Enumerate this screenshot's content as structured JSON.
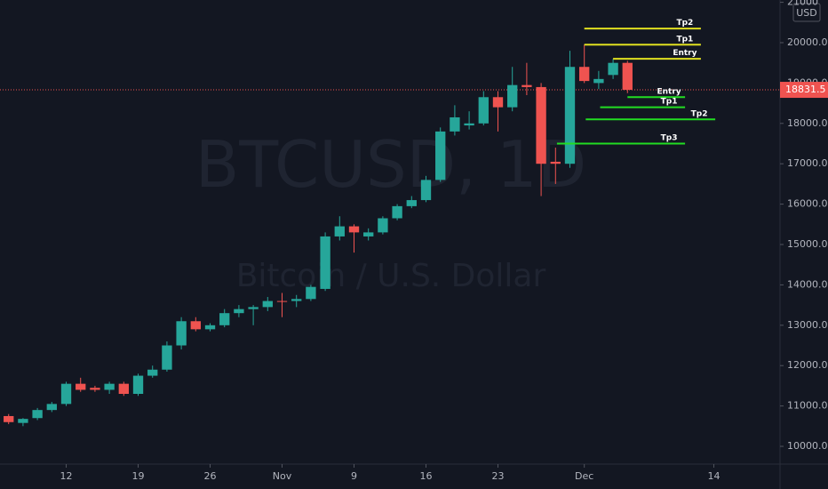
{
  "chart_data": {
    "type": "candlestick",
    "watermark": "BTCUSD, 1D",
    "watermark_subtitle": "Bitcoin / U.S. Dollar",
    "currency": "USD",
    "up_color": "#26a69a",
    "down_color": "#ef5350",
    "open": [
      10750,
      10580,
      10700,
      10900,
      11050,
      11550,
      11450,
      11400,
      11550,
      11300,
      11750,
      11900,
      12500,
      13100,
      12900,
      13000,
      13300,
      13400,
      13450,
      13600,
      13600,
      13650,
      13900,
      15200,
      15450,
      15200,
      15300,
      15650,
      15950,
      16100,
      16600,
      17800,
      17950,
      18000,
      18650,
      18400,
      18950,
      18900,
      17050,
      17000,
      19400,
      19000,
      19200,
      19500
    ],
    "high": [
      10800,
      10700,
      10950,
      11100,
      11600,
      11700,
      11500,
      11600,
      11600,
      11800,
      12000,
      12600,
      13200,
      13200,
      13050,
      13400,
      13500,
      13500,
      13700,
      13800,
      13750,
      14000,
      15300,
      15700,
      15500,
      15400,
      15700,
      16000,
      16200,
      16700,
      17900,
      18450,
      18300,
      18800,
      18800,
      19400,
      19500,
      19000,
      17400,
      19800,
      19950,
      19300,
      19600,
      19550
    ],
    "low": [
      10550,
      10500,
      10650,
      10850,
      11000,
      11350,
      11350,
      11300,
      11250,
      11250,
      11700,
      11850,
      12400,
      12850,
      12850,
      12950,
      13200,
      13000,
      13350,
      13200,
      13450,
      13600,
      13850,
      15100,
      14800,
      15100,
      15250,
      15600,
      15900,
      16050,
      16550,
      17700,
      17850,
      17950,
      17800,
      18300,
      18700,
      16200,
      16500,
      16900,
      19000,
      18850,
      19100,
      18750
    ],
    "close": [
      10600,
      10680,
      10900,
      11050,
      11550,
      11400,
      11400,
      11550,
      11300,
      11750,
      11900,
      12500,
      13100,
      12900,
      13000,
      13300,
      13400,
      13450,
      13600,
      13580,
      13650,
      13950,
      15200,
      15450,
      15300,
      15300,
      15650,
      15950,
      16100,
      16600,
      17800,
      18150,
      18000,
      18650,
      18400,
      18950,
      18900,
      17000,
      17000,
      19400,
      19050,
      19100,
      19500,
      18831.5
    ],
    "last_price": 18831.5,
    "ylim": [
      9560,
      21057
    ],
    "yticks": [
      {
        "value": 10000,
        "label": "10000.0"
      },
      {
        "value": 11000,
        "label": "11000.0"
      },
      {
        "value": 12000,
        "label": "12000.0"
      },
      {
        "value": 13000,
        "label": "13000.0"
      },
      {
        "value": 14000,
        "label": "14000.0"
      },
      {
        "value": 15000,
        "label": "15000.0"
      },
      {
        "value": 16000,
        "label": "16000.0"
      },
      {
        "value": 17000,
        "label": "17000.0"
      },
      {
        "value": 18000,
        "label": "18000.0"
      },
      {
        "value": 19000,
        "label": "19000.0"
      },
      {
        "value": 20000,
        "label": "20000.0"
      },
      {
        "value": 21000,
        "label": "21000"
      }
    ],
    "xlim": [
      -0.6,
      53.6
    ],
    "xticks": [
      {
        "value": 4,
        "label": "12"
      },
      {
        "value": 9,
        "label": "19"
      },
      {
        "value": 14,
        "label": "26"
      },
      {
        "value": 19,
        "label": "Nov"
      },
      {
        "value": 24,
        "label": "9"
      },
      {
        "value": 29,
        "label": "16"
      },
      {
        "value": 34,
        "label": "23"
      },
      {
        "value": 40,
        "label": "Dec"
      },
      {
        "value": 49,
        "label": "14"
      }
    ],
    "levels": [
      {
        "label": "Tp2",
        "color": "#e0e020",
        "value": 20350,
        "x": [
          40,
          48.1
        ]
      },
      {
        "label": "Tp1",
        "color": "#e0e020",
        "value": 19950,
        "x": [
          40,
          48.1
        ]
      },
      {
        "label": "Entry",
        "color": "#e0e020",
        "value": 19600,
        "x": [
          42,
          48.1
        ]
      },
      {
        "label": "Entry",
        "color": "#22dd22",
        "value": 18650,
        "x": [
          43,
          47
        ]
      },
      {
        "label": "Tp1",
        "color": "#22dd22",
        "value": 18400,
        "x": [
          41.1,
          47
        ]
      },
      {
        "label": "Tp2",
        "color": "#22dd22",
        "value": 18100,
        "x": [
          40.1,
          49.1
        ]
      },
      {
        "label": "Tp3",
        "color": "#22dd22",
        "value": 17500,
        "x": [
          38.1,
          47
        ]
      }
    ]
  }
}
